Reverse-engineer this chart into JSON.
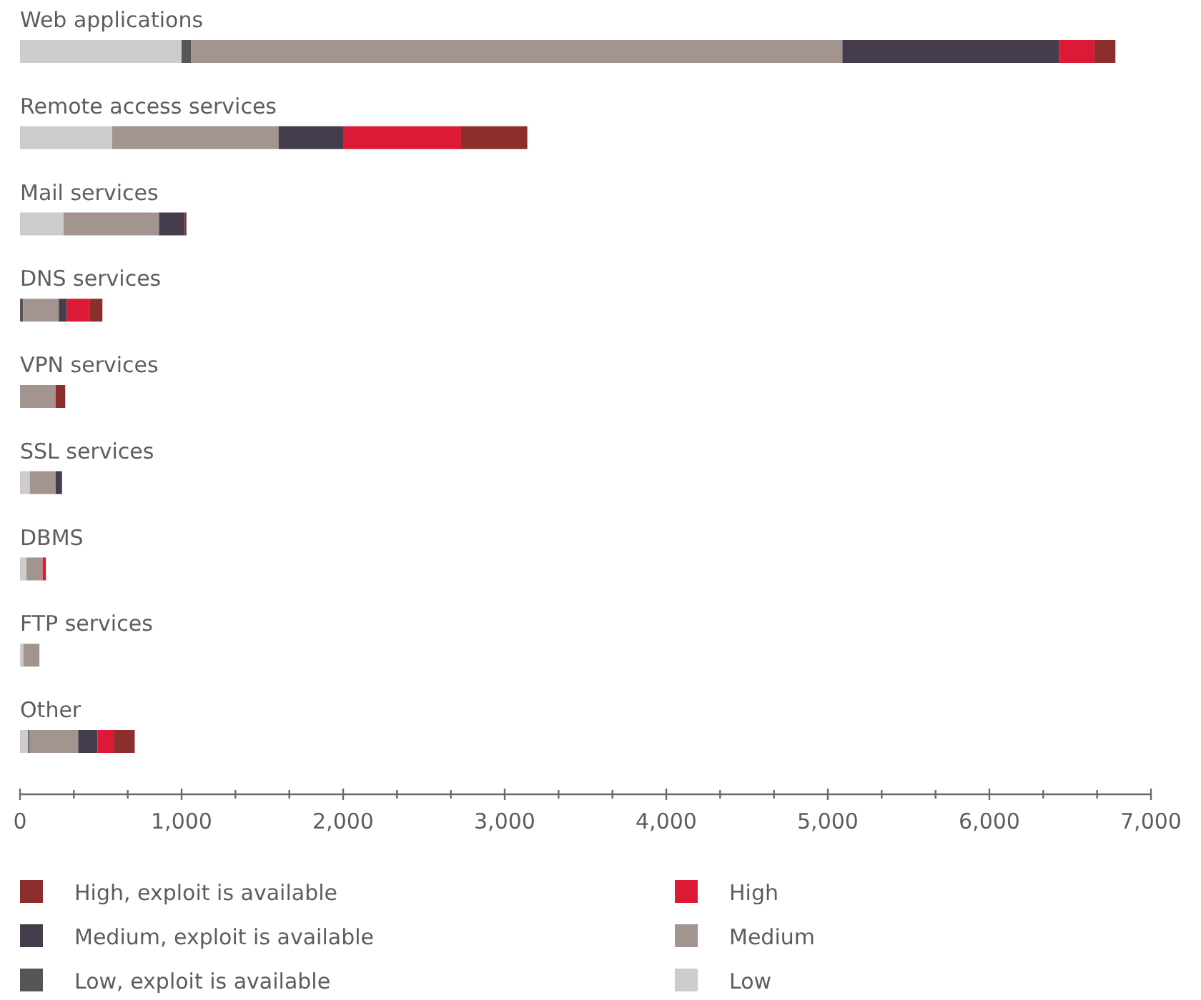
{
  "chart_data": {
    "type": "bar",
    "orientation": "horizontal",
    "stacked": true,
    "legend": "bottom",
    "categories": [
      "Web applications",
      "Remote access services",
      "Mail services",
      "DNS services",
      "VPN services",
      "SSL services",
      "DBMS",
      "FTP services",
      "Other"
    ],
    "series": [
      {
        "name": "Low",
        "color": "#cdcbcc",
        "values": [
          1000,
          570,
          270,
          null,
          null,
          60,
          40,
          20,
          50
        ]
      },
      {
        "name": "Low, exploit is available",
        "color": "#555555",
        "values": [
          60,
          null,
          null,
          20,
          null,
          null,
          null,
          null,
          10
        ]
      },
      {
        "name": "Medium",
        "color": "#a3948f",
        "values": [
          4030,
          1030,
          590,
          220,
          220,
          160,
          100,
          100,
          300
        ]
      },
      {
        "name": "Medium, exploit is available",
        "color": "#453c4c",
        "values": [
          1340,
          400,
          160,
          50,
          null,
          40,
          null,
          null,
          120
        ]
      },
      {
        "name": "High",
        "color": "#dc1a35",
        "values": [
          220,
          730,
          null,
          140,
          null,
          null,
          20,
          null,
          100
        ]
      },
      {
        "name": "High, exploit is available",
        "color": "#8c2e2b",
        "values": [
          130,
          410,
          10,
          80,
          60,
          null,
          null,
          null,
          130
        ]
      }
    ],
    "xlim": [
      0,
      7000
    ],
    "xticks": [
      0,
      {
        "value": 333.3,
        "label": null
      },
      {
        "value": 666.7,
        "label": null
      },
      {
        "value": 1000,
        "label": "1,000"
      },
      {
        "value": 1333.3,
        "label": null
      },
      {
        "value": 1666.7,
        "label": null
      },
      {
        "value": 2000,
        "label": "2,000"
      },
      {
        "value": 2333.3,
        "label": null
      },
      {
        "value": 2666.7,
        "label": null
      },
      {
        "value": 3000,
        "label": "3,000"
      },
      {
        "value": 3333.3,
        "label": null
      },
      {
        "value": 3666.7,
        "label": null
      },
      {
        "value": 4000,
        "label": "4,000"
      },
      {
        "value": 4333.3,
        "label": null
      },
      {
        "value": 4666.7,
        "label": null
      },
      {
        "value": 5000,
        "label": "5,000"
      },
      {
        "value": 5333.3,
        "label": null
      },
      {
        "value": 5666.7,
        "label": null
      },
      {
        "value": 6000,
        "label": "6,000"
      },
      {
        "value": 6333.3,
        "label": null
      },
      {
        "value": 6666.7,
        "label": null
      },
      {
        "value": 7000,
        "label": "7,000"
      }
    ]
  }
}
